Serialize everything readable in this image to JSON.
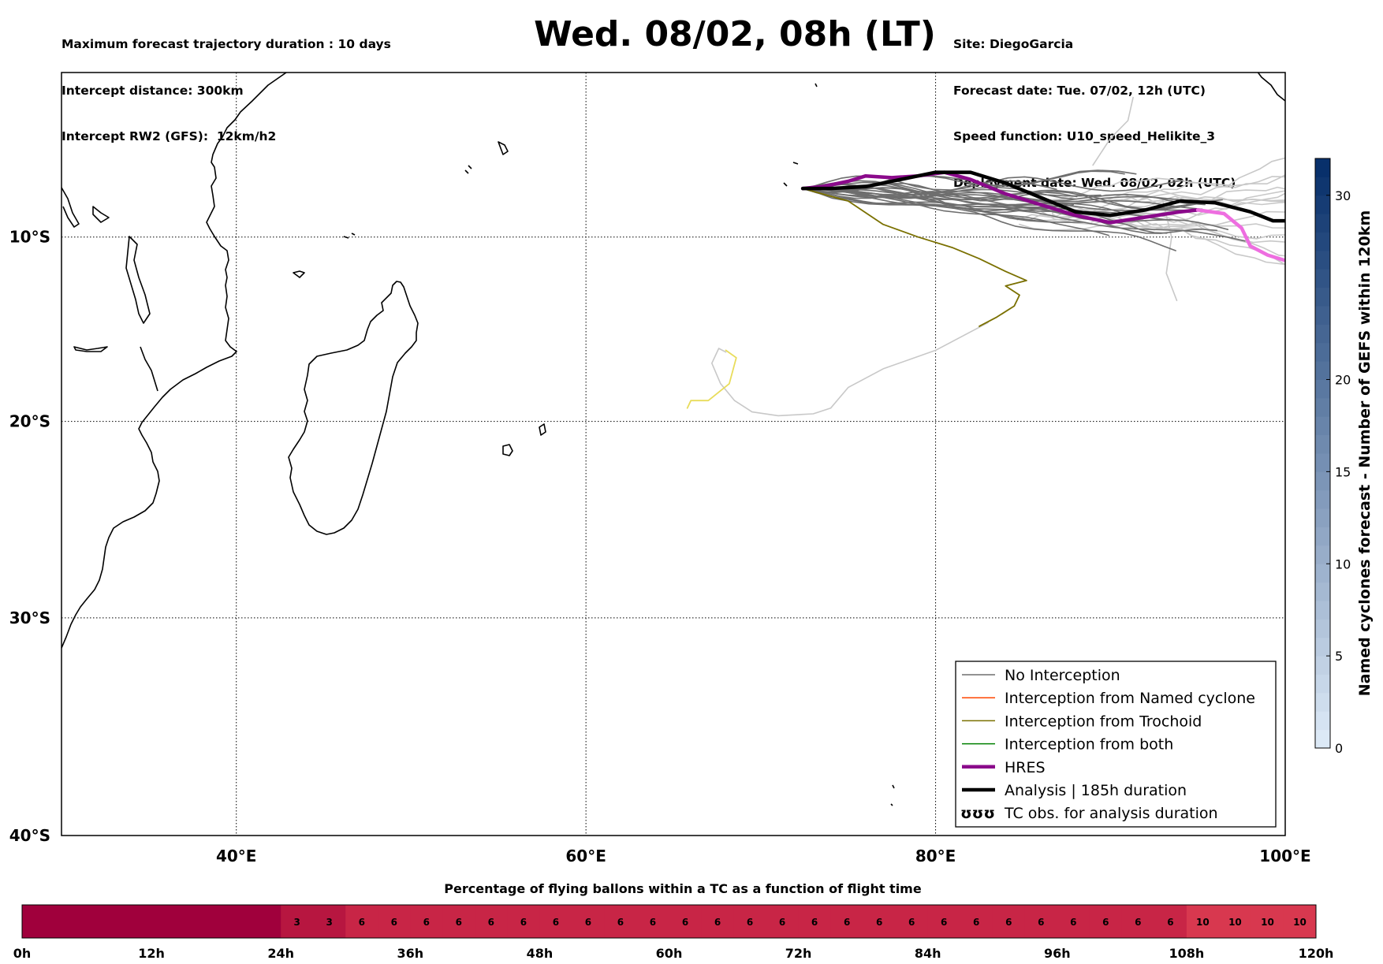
{
  "header": {
    "left_lines": [
      "Maximum forecast trajectory duration : 10 days",
      "Intercept distance: 300km",
      "Intercept RW2 (GFS):  12km/h2"
    ],
    "title": "Wed. 08/02, 08h (LT)",
    "right_lines": [
      "Site: DiegoGarcia",
      "Forecast date: Tue. 07/02, 12h (UTC)",
      "Speed function: U10_speed_Helikite_3",
      "Deployment date: Wed. 08/02, 02h (UTC)"
    ]
  },
  "map": {
    "lon_range": [
      30,
      100
    ],
    "lat_range": [
      -40,
      -0.8
    ],
    "lon_ticks": [
      {
        "value": 40,
        "label": "40°E"
      },
      {
        "value": 60,
        "label": "60°E"
      },
      {
        "value": 80,
        "label": "80°E"
      },
      {
        "value": 100,
        "label": "100°E"
      }
    ],
    "lat_ticks": [
      {
        "value": -10,
        "label": "10°S"
      },
      {
        "value": -20,
        "label": "20°S"
      },
      {
        "value": -30,
        "label": "30°S"
      },
      {
        "value": -40,
        "label": "40°S"
      }
    ],
    "launch_site": {
      "lon": 72.4,
      "lat": -7.3
    },
    "colors": {
      "no_interception": "#6e6e6e",
      "light_members": "#c8c8c8",
      "named_cyclone": "#ff4500",
      "trochoid": "#7a7000",
      "both": "#008000",
      "hres": "#8b0a8b",
      "hres_late": "#ee6ee0",
      "analysis": "#000000",
      "yellow_member": "#e8dc5a"
    }
  },
  "legend": {
    "items": [
      {
        "label": "No Interception",
        "color": "#6e6e6e",
        "style": "thin"
      },
      {
        "label": "Interception from Named cyclone",
        "color": "#ff4500",
        "style": "thin"
      },
      {
        "label": "Interception from Trochoid",
        "color": "#7a7000",
        "style": "thin"
      },
      {
        "label": "Interception from both",
        "color": "#008000",
        "style": "thin"
      },
      {
        "label": "HRES",
        "color": "#8b0a8b",
        "style": "thick"
      },
      {
        "label": "Analysis | 185h duration",
        "color": "#000000",
        "style": "thick"
      },
      {
        "label": "TC obs. for analysis duration",
        "color": "#000000",
        "style": "symbol"
      }
    ]
  },
  "colorbar": {
    "label": "Named cyclones forecast - Number of GEFS within 120km",
    "range": [
      0,
      32
    ],
    "ticks": [
      0,
      5,
      10,
      15,
      20,
      30
    ],
    "color_low": "#dce9f6",
    "color_high": "#08306b"
  },
  "balloon_bar": {
    "title": "Percentage of flying ballons within a TC as a function of flight time",
    "segment_hours": 3,
    "values": [
      0,
      0,
      0,
      0,
      0,
      0,
      0,
      0,
      3,
      3,
      6,
      6,
      6,
      6,
      6,
      6,
      6,
      6,
      6,
      6,
      6,
      6,
      6,
      6,
      6,
      6,
      6,
      6,
      6,
      6,
      6,
      6,
      6,
      6,
      6,
      6,
      10,
      10,
      10,
      10
    ],
    "ticks": [
      "0h",
      "12h",
      "24h",
      "36h",
      "48h",
      "60h",
      "72h",
      "84h",
      "96h",
      "108h",
      "120h"
    ],
    "colors": {
      "0": "#a0003c",
      "3": "#b71640",
      "6": "#c82546",
      "10": "#d8384f"
    }
  }
}
